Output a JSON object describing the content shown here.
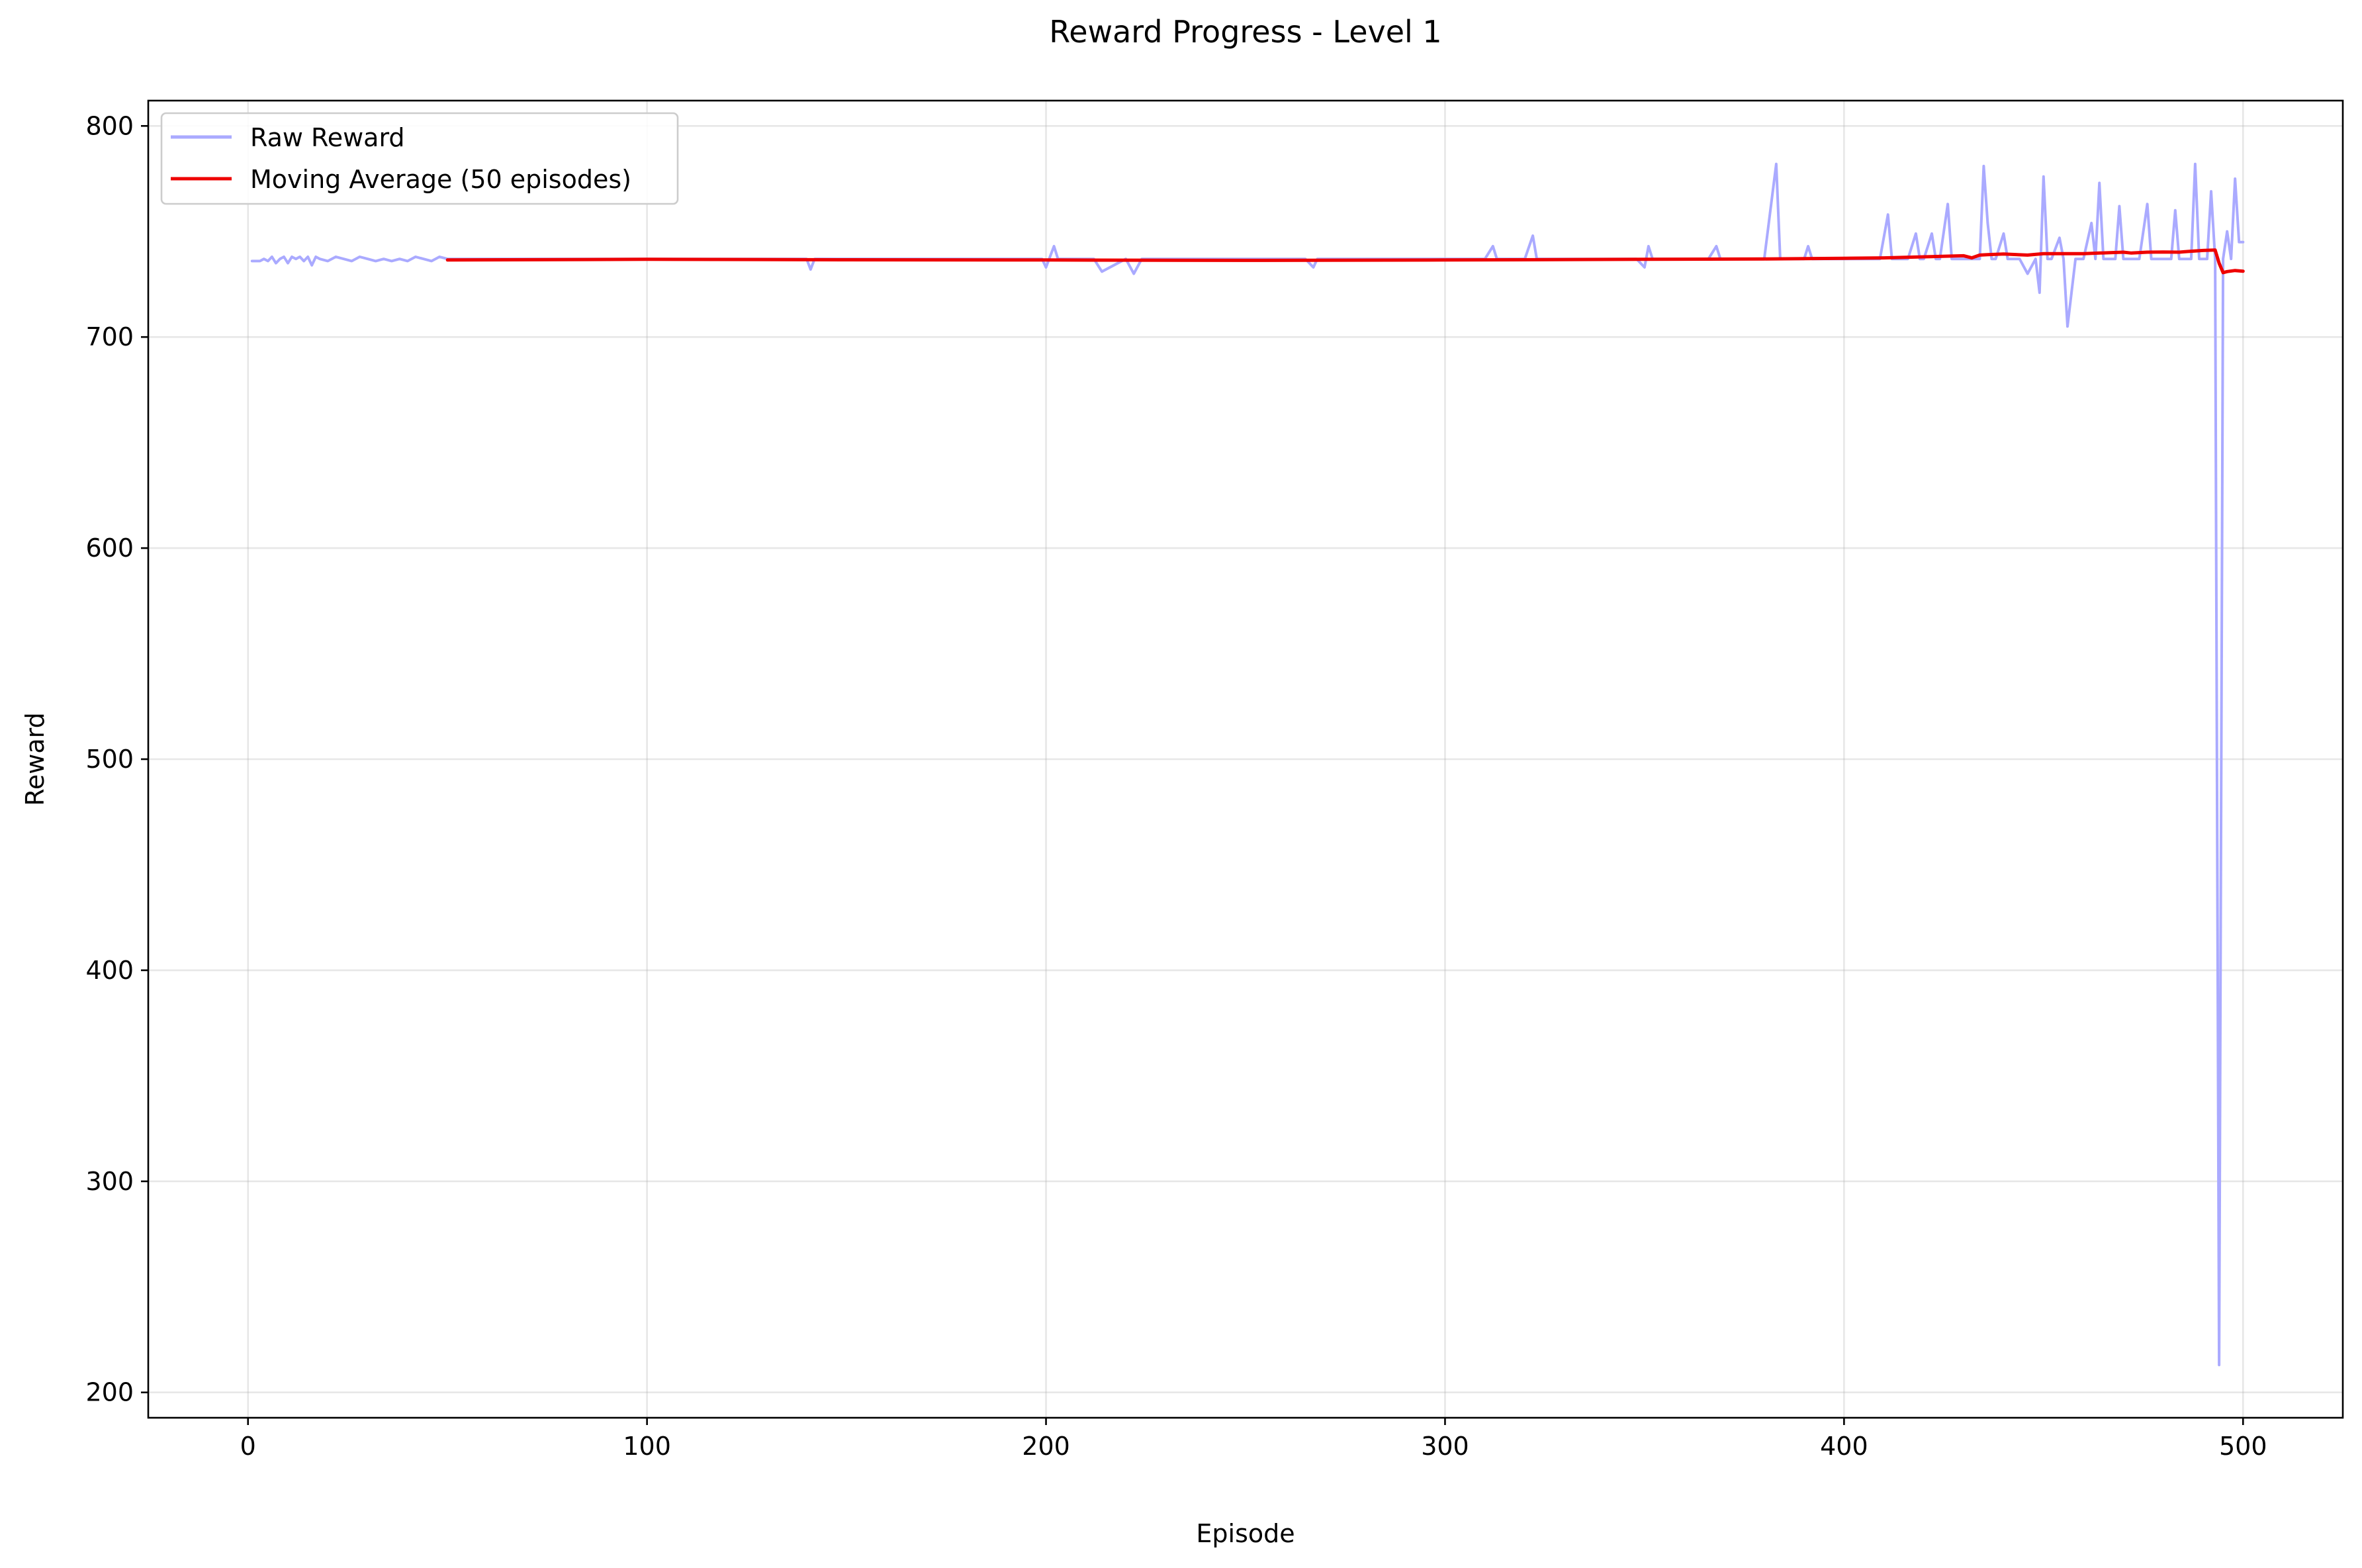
{
  "chart_data": {
    "type": "line",
    "title": "Reward Progress - Level 1",
    "xlabel": "Episode",
    "ylabel": "Reward",
    "xlim": [
      -25,
      525
    ],
    "ylim": [
      188,
      812
    ],
    "xticks": [
      0,
      100,
      200,
      300,
      400,
      500
    ],
    "yticks": [
      200,
      300,
      400,
      500,
      600,
      700,
      800
    ],
    "grid": true,
    "legend_position": "upper-left",
    "series": [
      {
        "name": "Raw Reward",
        "color": "#aaaaff",
        "x": [
          1,
          3,
          4,
          5,
          6,
          7,
          8,
          9,
          10,
          11,
          12,
          13,
          14,
          15,
          16,
          17,
          18,
          20,
          22,
          24,
          26,
          28,
          30,
          32,
          34,
          36,
          38,
          40,
          42,
          44,
          46,
          48,
          50,
          60,
          80,
          100,
          120,
          140,
          141,
          142,
          150,
          160,
          180,
          199,
          200,
          202,
          203,
          205,
          210,
          212,
          214,
          220,
          222,
          224,
          230,
          240,
          250,
          260,
          265,
          267,
          268,
          270,
          280,
          290,
          300,
          310,
          312,
          313,
          315,
          320,
          322,
          323,
          325,
          330,
          340,
          348,
          350,
          351,
          352,
          355,
          360,
          366,
          368,
          369,
          370,
          375,
          380,
          383,
          384,
          386,
          388,
          390,
          391,
          392,
          394,
          396,
          398,
          400,
          405,
          409,
          411,
          412,
          414,
          416,
          418,
          419,
          420,
          422,
          423,
          424,
          426,
          427,
          428,
          430,
          432,
          434,
          435,
          436,
          437,
          438,
          440,
          441,
          442,
          444,
          446,
          448,
          449,
          450,
          451,
          452,
          454,
          455,
          456,
          458,
          460,
          462,
          463,
          464,
          465,
          466,
          467,
          468,
          469,
          470,
          472,
          474,
          476,
          477,
          478,
          480,
          482,
          483,
          484,
          485,
          486,
          487,
          488,
          489,
          490,
          491,
          492,
          493,
          494,
          495,
          496,
          497,
          498,
          499,
          500
        ],
        "values": [
          736,
          736,
          737,
          736,
          738,
          735,
          737,
          738,
          735,
          738,
          737,
          738,
          736,
          738,
          734,
          738,
          737,
          736,
          738,
          737,
          736,
          738,
          737,
          736,
          737,
          736,
          737,
          736,
          738,
          737,
          736,
          738,
          737,
          737,
          737,
          737,
          737,
          737,
          732,
          737,
          737,
          737,
          737,
          737,
          733,
          743,
          737,
          737,
          737,
          737,
          731,
          737,
          730,
          737,
          737,
          737,
          737,
          737,
          737,
          733,
          737,
          737,
          737,
          737,
          737,
          737,
          743,
          737,
          737,
          737,
          748,
          737,
          737,
          737,
          737,
          737,
          733,
          743,
          737,
          737,
          737,
          737,
          743,
          737,
          737,
          737,
          737,
          782,
          737,
          737,
          737,
          737,
          743,
          737,
          737,
          737,
          737,
          737,
          737,
          737,
          758,
          737,
          737,
          737,
          749,
          737,
          737,
          749,
          737,
          737,
          763,
          737,
          737,
          737,
          737,
          737,
          781,
          754,
          737,
          737,
          749,
          737,
          737,
          737,
          730,
          737,
          721,
          776,
          737,
          737,
          747,
          737,
          705,
          737,
          737,
          754,
          737,
          773,
          737,
          737,
          737,
          737,
          762,
          737,
          737,
          737,
          763,
          737,
          737,
          737,
          737,
          760,
          737,
          737,
          737,
          737,
          782,
          737,
          737,
          737,
          769,
          737,
          213,
          737,
          750,
          737,
          775,
          745,
          745
        ]
      },
      {
        "name": "Moving Average (50 episodes)",
        "color": "#ee0000",
        "x": [
          50,
          100,
          150,
          200,
          250,
          300,
          350,
          380,
          400,
          410,
          420,
          430,
          432,
          434,
          436,
          440,
          446,
          450,
          460,
          470,
          472,
          476,
          480,
          484,
          486,
          490,
          493,
          494,
          495,
          496,
          498,
          500
        ],
        "values": [
          736.5,
          736.8,
          736.6,
          736.5,
          736.3,
          736.5,
          736.8,
          737,
          737.3,
          737.5,
          738,
          738.5,
          737.5,
          738.8,
          739,
          739.3,
          738.8,
          739.5,
          739.5,
          740.2,
          739.8,
          740.2,
          740.3,
          740.2,
          740.5,
          741,
          741.2,
          735,
          730.5,
          731,
          731.5,
          731.2
        ]
      }
    ]
  }
}
